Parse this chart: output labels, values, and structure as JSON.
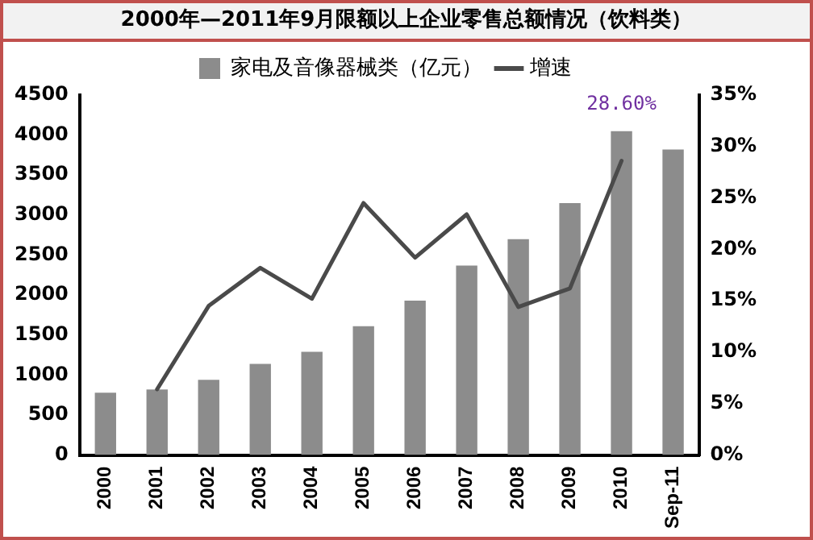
{
  "chart_data": {
    "type": "bar",
    "title": "2000年—2011年9月限额以上企业零售总额情况（饮料类）",
    "categories": [
      "2000",
      "2001",
      "2002",
      "2003",
      "2004",
      "2005",
      "2006",
      "2007",
      "2008",
      "2009",
      "2010",
      "Sep-11"
    ],
    "series": [
      {
        "name": "家电及音像器械类（亿元）",
        "color": "#8c8c8c",
        "values": [
          780,
          820,
          940,
          1140,
          1290,
          1610,
          1930,
          2370,
          2700,
          3150,
          4050,
          3820
        ]
      },
      {
        "name": "增速",
        "type": "line",
        "axis": "y2",
        "color": "#4a4a4a",
        "values": [
          null,
          6.4,
          14.5,
          18.2,
          15.2,
          24.5,
          19.2,
          23.4,
          14.4,
          16.2,
          28.6,
          null
        ],
        "value_labels": [
          null,
          null,
          null,
          null,
          null,
          null,
          null,
          null,
          null,
          null,
          "28.60%",
          null
        ]
      }
    ],
    "ylim": [
      0,
      4500
    ],
    "yticks": [
      0,
      500,
      1000,
      1500,
      2000,
      2500,
      3000,
      3500,
      4000,
      4500
    ],
    "y2lim": [
      0,
      35
    ],
    "y2ticks": [
      {
        "value": 0,
        "label": "0%"
      },
      {
        "value": 5,
        "label": "5%"
      },
      {
        "value": 10,
        "label": "10%"
      },
      {
        "value": 15,
        "label": "15%"
      },
      {
        "value": 20,
        "label": "20%"
      },
      {
        "value": 25,
        "label": "25%"
      },
      {
        "value": 30,
        "label": "30%"
      },
      {
        "value": 35,
        "label": "35%"
      }
    ],
    "legend": "top",
    "grid": false
  }
}
